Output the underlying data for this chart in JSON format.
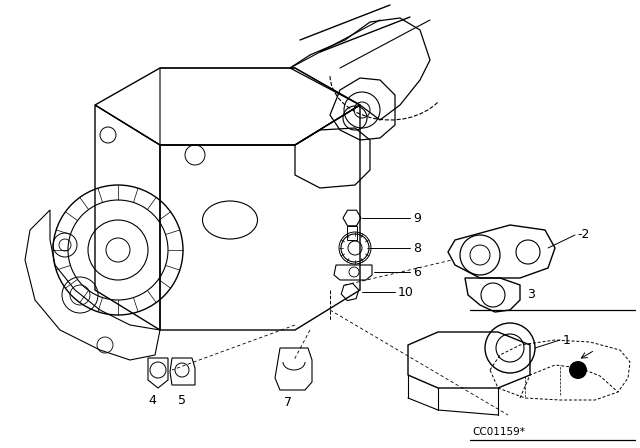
{
  "background_color": "#ffffff",
  "line_color": "#000000",
  "fig_width": 6.4,
  "fig_height": 4.48,
  "dpi": 100,
  "code_text": "CC01159*"
}
